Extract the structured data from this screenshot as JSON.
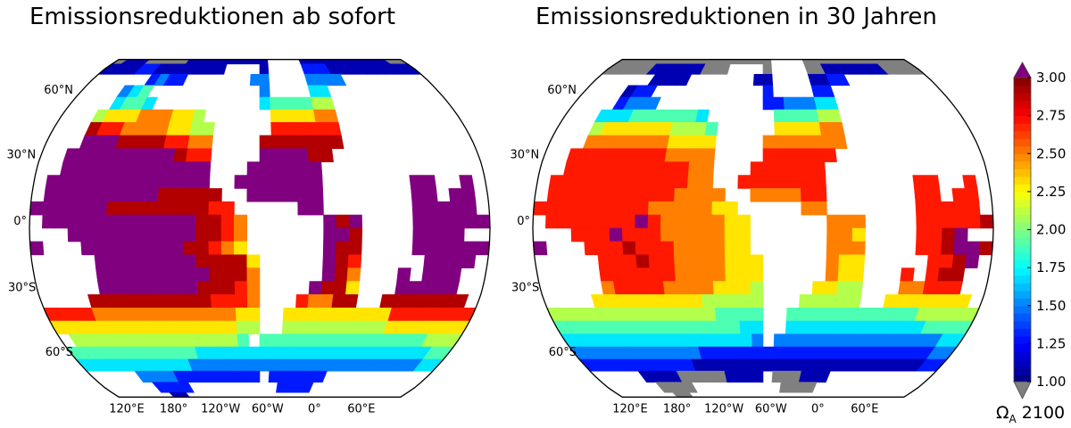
{
  "titles": {
    "left": "Emissionsreduktionen ab sofort",
    "right": "Emissionsreduktionen in 30 Jahren"
  },
  "lat_labels": [
    "60°N",
    "30°N",
    "0°",
    "30°S",
    "60°S"
  ],
  "lon_labels": [
    "120°E",
    "180°",
    "120°W",
    "60°W",
    "0°",
    "60°E"
  ],
  "colorbar": {
    "label_main": "Ω",
    "label_sub": "A",
    "label_year": "2100",
    "ticks": [
      "1.00",
      "1.25",
      "1.50",
      "1.75",
      "2.00",
      "2.25",
      "2.50",
      "2.75",
      "3.00"
    ],
    "min": 1.0,
    "max": 3.0,
    "colormap": "jet",
    "over_color": "#800080",
    "under_color": "#808080",
    "nodata_color": "#ffffff"
  },
  "maps": [
    {
      "id": "left",
      "grid": [
        "000ggggg0000000000....00000000000ggg",
        "0001100000000....0....11100000000000",
        ".....1211.......22....2222..........",
        "...234...........2....33............",
        "...3443..........3444455............",
        "..5666777665......666677............",
        "..98877776655.....888888............",
        "..ppp99998877....9999999............",
        ".ppppppppp988....pppp99.............",
        ".pppppppppppp...pppppp..............",
        "ppppppppppppp..ppppppp.......pp..p..",
        "ppppppppp99999..pppppp.......pp.pp..",
        "ppppp9999999988.....pp.......ppppp.p",
        "pppppppppppp9987......p9p....pppppp.",
        "..pppppppppp9987......pp9....pppp...",
        "...pppppppp99876......p99....ppppppp",
        "....pppppppp99996.....p98.....pppp..",
        "....ppppppppp9997.....p97...p.ppp...",
        "....pppppppp99987....p996...ppppp...",
        "...99999999998887...87799..9999999..",
        "88877777777777766..66666666688888888",
        "66666666666666655..55555555566666666",
        "5555555555555554.444444444444444555",
        "444444444443333333333333333333333444",
        "333333333322222222222222222222222333",
        "....2222111111111.111111............",
        ".....1111..........1111.............",
        "......00............................"
      ]
    },
    {
      "id": "right",
      "grid": [
        "gggggggggggggggggg....gggggggggggggg",
        "gggg000000ggg....g....gg0000000ggggg",
        ".....0000.......00....0011..........",
        "...011...........1....11............",
        "...1222..........1122233............",
        "..3334444443......444455............",
        "..56666665554.....666677............",
        "..77777776666....7777777............",
        ".888888887777....888888.............",
        ".888888888877...888888..............",
        "8888888888877..8888888.......88..8..",
        "88888888887777..777788.......88.88..",
        "888888887777766.....77.......88888.8",
        "8888888p87777766......777....888889.",
        "..888p8887777766......776....889p...",
        "...8889888777766......777....889pp9p",
        "....8889887777666.....766.....889p..",
        "....8888887777666.....766...8.899...",
        "....7888877776665....6655...77888...",
        "...66666666655555...55555..6666666..",
        "55555555555554444..44444444444555555",
        "44444444444444433..33333333333344444",
        "33333333333333332.222222222222222333",
        "222222222221111111111111111111111222",
        "111111111100000000000000000000000111",
        "....0000ggggg0000.ggg000............",
        ".....gggg..........gggg.............",
        "......gg............................"
      ]
    }
  ]
}
